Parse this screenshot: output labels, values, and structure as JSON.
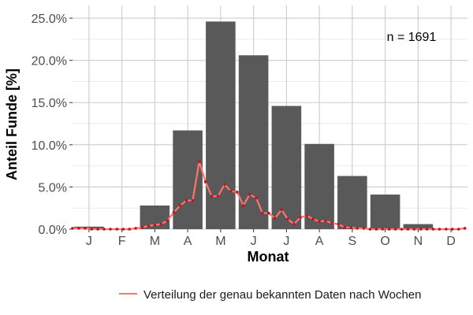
{
  "chart_data": {
    "type": "bar",
    "categories": [
      "J",
      "F",
      "M",
      "A",
      "M",
      "J",
      "J",
      "A",
      "S",
      "O",
      "N",
      "D"
    ],
    "values": [
      0.3,
      0.0,
      2.8,
      11.7,
      24.6,
      20.6,
      14.6,
      10.1,
      6.3,
      4.1,
      0.6,
      0.0
    ],
    "ylim": [
      0,
      26.5
    ],
    "yticks": [
      0,
      5,
      10,
      15,
      20,
      25
    ],
    "ytick_labels": [
      "0.0%",
      "5.0%",
      "10.0%",
      "15.0%",
      "20.0%",
      "25.0%"
    ],
    "xlabel": "Monat",
    "ylabel": "Anteil Funde [%]",
    "annotation": "n = 1691",
    "grid": true,
    "legend_position": "bottom",
    "colors": {
      "bars": "#595959",
      "line": "#f8766d",
      "points": "#c0141e",
      "grid": "#cccccc"
    },
    "series": [
      {
        "name": "Verteilung der genau bekannten Daten nach Wochen",
        "type": "line",
        "x": [
          0.5,
          0.69,
          0.88,
          1.08,
          1.27,
          1.46,
          1.65,
          1.85,
          2.04,
          2.23,
          2.42,
          2.62,
          2.81,
          3.0,
          3.19,
          3.38,
          3.58,
          3.77,
          3.96,
          4.15,
          4.35,
          4.54,
          4.73,
          4.92,
          5.12,
          5.31,
          5.5,
          5.69,
          5.88,
          6.08,
          6.27,
          6.46,
          6.65,
          6.85,
          7.04,
          7.23,
          7.42,
          7.62,
          7.81,
          8.0,
          8.19,
          8.38,
          8.58,
          8.77,
          8.96,
          9.15,
          9.35,
          9.54,
          9.73,
          9.92,
          10.12,
          10.31,
          10.5,
          10.69,
          10.88,
          11.08,
          11.27,
          11.46,
          11.65,
          11.85,
          12.04,
          12.23,
          12.42
        ],
        "values": [
          0.1,
          0.1,
          0.1,
          0.0,
          0.0,
          0.0,
          0.0,
          0.0,
          0.0,
          0.0,
          0.1,
          0.2,
          0.4,
          0.5,
          0.6,
          1.0,
          2.0,
          2.8,
          3.4,
          3.4,
          8.0,
          5.6,
          3.9,
          3.9,
          5.3,
          4.5,
          4.4,
          2.8,
          4.1,
          3.7,
          1.9,
          1.9,
          1.3,
          2.3,
          1.2,
          0.6,
          1.4,
          1.6,
          1.2,
          0.9,
          1.0,
          0.7,
          0.6,
          0.2,
          0.2,
          0.1,
          0.1,
          0.0,
          0.0,
          0.0,
          0.0,
          0.0,
          0.0,
          0.0,
          0.0,
          0.0,
          0.0,
          0.0,
          0.0,
          0.0,
          0.0,
          0.0,
          0.1
        ]
      }
    ]
  }
}
